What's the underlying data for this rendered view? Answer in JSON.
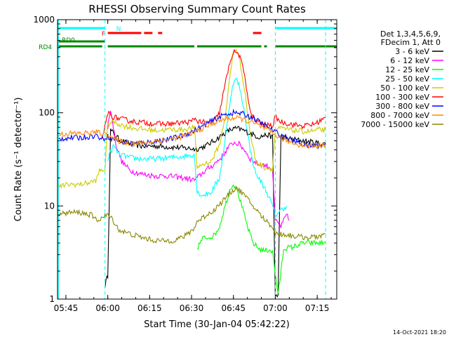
{
  "chart_data": {
    "type": "line",
    "title": "RHESSI Observing Summary Count Rates",
    "xlabel": "Start Time (30-Jan-04 05:42:22)",
    "ylabel": "Count Rate (s⁻¹ detector⁻¹)",
    "yscale": "log",
    "ylim": [
      1,
      1000
    ],
    "xlim_minutes": [
      0,
      100
    ],
    "x_ticks": [
      {
        "m": 3,
        "label": "05:45"
      },
      {
        "m": 18,
        "label": "06:00"
      },
      {
        "m": 33,
        "label": "06:15"
      },
      {
        "m": 48,
        "label": "06:30"
      },
      {
        "m": 63,
        "label": "06:45"
      },
      {
        "m": 78,
        "label": "07:00"
      },
      {
        "m": 93,
        "label": "07:15"
      }
    ],
    "y_ticks": [
      {
        "v": 1,
        "label": "1"
      },
      {
        "v": 10,
        "label": "10"
      },
      {
        "v": 100,
        "label": "100"
      },
      {
        "v": 1000,
        "label": "1000"
      }
    ],
    "legend": {
      "placement": "right",
      "header": [
        "Det 1,3,4,5,6,9,",
        "FDecim 1, Att 0"
      ]
    },
    "series": [
      {
        "name": "3 - 6 keV",
        "color": "#000000",
        "points": [
          [
            17,
            1.4
          ],
          [
            18,
            1.8
          ],
          [
            19,
            65
          ],
          [
            22,
            52
          ],
          [
            26,
            46
          ],
          [
            30,
            44
          ],
          [
            35,
            44
          ],
          [
            40,
            43
          ],
          [
            45,
            42
          ],
          [
            49,
            41
          ],
          [
            50,
            41
          ],
          [
            53,
            44
          ],
          [
            56,
            50
          ],
          [
            59,
            58
          ],
          [
            62,
            66
          ],
          [
            64,
            68
          ],
          [
            66,
            66
          ],
          [
            69,
            60
          ],
          [
            72,
            55
          ],
          [
            75,
            58
          ],
          [
            77,
            55
          ],
          [
            78,
            1.1
          ],
          [
            79,
            1.1
          ],
          [
            80,
            55
          ],
          [
            84,
            52
          ],
          [
            88,
            50
          ],
          [
            92,
            48
          ],
          [
            96,
            46
          ]
        ]
      },
      {
        "name": "6 - 12 keV",
        "color": "#ff00ff",
        "points": [
          [
            18,
            70
          ],
          [
            19,
            110
          ],
          [
            21,
            45
          ],
          [
            23,
            30
          ],
          [
            26,
            24
          ],
          [
            30,
            22
          ],
          [
            35,
            21
          ],
          [
            40,
            21
          ],
          [
            45,
            20
          ],
          [
            49,
            19
          ],
          [
            50,
            20
          ],
          [
            53,
            24
          ],
          [
            56,
            28
          ],
          [
            59,
            34
          ],
          [
            61,
            42
          ],
          [
            63,
            48
          ],
          [
            65,
            46
          ],
          [
            67,
            40
          ],
          [
            69,
            32
          ],
          [
            72,
            28
          ],
          [
            75,
            27
          ],
          [
            77,
            25
          ],
          [
            78,
            7
          ],
          [
            80,
            6
          ],
          [
            82,
            8
          ],
          [
            83,
            7
          ]
        ]
      },
      {
        "name": "12 - 25 keV",
        "color": "#00ff00",
        "points": [
          [
            50,
            3.5
          ],
          [
            52,
            4.5
          ],
          [
            54,
            4.6
          ],
          [
            56,
            4.8
          ],
          [
            58,
            6
          ],
          [
            60,
            10
          ],
          [
            62,
            16
          ],
          [
            63,
            17
          ],
          [
            64,
            16
          ],
          [
            66,
            10
          ],
          [
            68,
            6
          ],
          [
            70,
            4
          ],
          [
            72,
            3.5
          ],
          [
            74,
            3.3
          ],
          [
            76,
            3.4
          ],
          [
            77,
            3.2
          ],
          [
            79,
            1.1
          ],
          [
            81,
            3.5
          ],
          [
            84,
            3.6
          ],
          [
            88,
            4
          ],
          [
            92,
            4
          ],
          [
            96,
            4
          ]
        ]
      },
      {
        "name": "25 - 50 keV",
        "color": "#00ffff",
        "points": [
          [
            18,
            32
          ],
          [
            20,
            44
          ],
          [
            22,
            36
          ],
          [
            26,
            33
          ],
          [
            30,
            32
          ],
          [
            35,
            32
          ],
          [
            40,
            33
          ],
          [
            45,
            34
          ],
          [
            49,
            36
          ],
          [
            50,
            14
          ],
          [
            52,
            13
          ],
          [
            55,
            14
          ],
          [
            58,
            20
          ],
          [
            60,
            50
          ],
          [
            62,
            150
          ],
          [
            63,
            210
          ],
          [
            64,
            230
          ],
          [
            65,
            200
          ],
          [
            67,
            100
          ],
          [
            69,
            40
          ],
          [
            71,
            22
          ],
          [
            73,
            18
          ],
          [
            75,
            14
          ],
          [
            77,
            10
          ],
          [
            78,
            8
          ],
          [
            80,
            9
          ],
          [
            82,
            10
          ]
        ]
      },
      {
        "name": "50 - 100 keV",
        "color": "#cccc00",
        "points": [
          [
            0,
            16
          ],
          [
            4,
            17
          ],
          [
            8,
            17
          ],
          [
            12,
            18
          ],
          [
            14,
            19
          ],
          [
            15,
            24
          ],
          [
            16,
            24
          ],
          [
            17,
            25
          ],
          [
            18,
            76
          ],
          [
            20,
            80
          ],
          [
            24,
            72
          ],
          [
            28,
            68
          ],
          [
            32,
            66
          ],
          [
            36,
            65
          ],
          [
            40,
            66
          ],
          [
            44,
            66
          ],
          [
            48,
            68
          ],
          [
            49,
            70
          ],
          [
            50,
            26
          ],
          [
            52,
            28
          ],
          [
            55,
            30
          ],
          [
            58,
            45
          ],
          [
            60,
            90
          ],
          [
            62,
            280
          ],
          [
            63,
            460
          ],
          [
            64,
            480
          ],
          [
            65,
            400
          ],
          [
            67,
            180
          ],
          [
            69,
            60
          ],
          [
            71,
            30
          ],
          [
            74,
            26
          ],
          [
            77,
            25
          ],
          [
            78,
            66
          ],
          [
            80,
            68
          ],
          [
            84,
            65
          ],
          [
            88,
            63
          ],
          [
            92,
            64
          ],
          [
            94,
            66
          ],
          [
            96,
            65
          ]
        ]
      },
      {
        "name": "100 - 300 keV",
        "color": "#ff0000",
        "points": [
          [
            16,
            50
          ],
          [
            18,
            100
          ],
          [
            20,
            90
          ],
          [
            24,
            84
          ],
          [
            28,
            80
          ],
          [
            32,
            78
          ],
          [
            36,
            76
          ],
          [
            40,
            76
          ],
          [
            44,
            78
          ],
          [
            48,
            80
          ],
          [
            49,
            88
          ],
          [
            50,
            82
          ],
          [
            53,
            78
          ],
          [
            56,
            80
          ],
          [
            58,
            100
          ],
          [
            60,
            200
          ],
          [
            62,
            380
          ],
          [
            63,
            440
          ],
          [
            64,
            450
          ],
          [
            65,
            420
          ],
          [
            67,
            260
          ],
          [
            69,
            100
          ],
          [
            71,
            82
          ],
          [
            74,
            75
          ],
          [
            77,
            72
          ],
          [
            78,
            90
          ],
          [
            80,
            80
          ],
          [
            84,
            75
          ],
          [
            88,
            72
          ],
          [
            92,
            76
          ],
          [
            94,
            82
          ],
          [
            96,
            88
          ]
        ]
      },
      {
        "name": "300 - 800 keV",
        "color": "#0000ff",
        "points": [
          [
            0,
            52
          ],
          [
            4,
            54
          ],
          [
            8,
            54
          ],
          [
            12,
            56
          ],
          [
            14,
            57
          ],
          [
            16,
            52
          ],
          [
            18,
            56
          ],
          [
            20,
            52
          ],
          [
            24,
            48
          ],
          [
            28,
            47
          ],
          [
            32,
            48
          ],
          [
            36,
            50
          ],
          [
            40,
            52
          ],
          [
            44,
            56
          ],
          [
            48,
            62
          ],
          [
            52,
            72
          ],
          [
            56,
            84
          ],
          [
            60,
            96
          ],
          [
            63,
            100
          ],
          [
            66,
            98
          ],
          [
            70,
            88
          ],
          [
            74,
            74
          ],
          [
            78,
            62
          ],
          [
            82,
            54
          ],
          [
            86,
            48
          ],
          [
            90,
            44
          ],
          [
            94,
            45
          ],
          [
            96,
            46
          ]
        ]
      },
      {
        "name": "800 - 7000 keV",
        "color": "#ff8800",
        "points": [
          [
            0,
            58
          ],
          [
            4,
            60
          ],
          [
            8,
            60
          ],
          [
            12,
            61
          ],
          [
            14,
            62
          ],
          [
            16,
            60
          ],
          [
            18,
            60
          ],
          [
            20,
            52
          ],
          [
            24,
            48
          ],
          [
            28,
            47
          ],
          [
            32,
            48
          ],
          [
            36,
            50
          ],
          [
            40,
            52
          ],
          [
            44,
            55
          ],
          [
            48,
            60
          ],
          [
            52,
            68
          ],
          [
            56,
            78
          ],
          [
            60,
            86
          ],
          [
            63,
            88
          ],
          [
            66,
            86
          ],
          [
            70,
            78
          ],
          [
            74,
            68
          ],
          [
            78,
            58
          ],
          [
            82,
            50
          ],
          [
            86,
            46
          ],
          [
            90,
            44
          ],
          [
            94,
            44
          ],
          [
            96,
            46
          ]
        ]
      },
      {
        "name": "7000 - 15000 keV",
        "color": "#888800",
        "points": [
          [
            0,
            8
          ],
          [
            4,
            8.5
          ],
          [
            8,
            8.5
          ],
          [
            12,
            8
          ],
          [
            14,
            7
          ],
          [
            16,
            7.5
          ],
          [
            18,
            8
          ],
          [
            20,
            7
          ],
          [
            22,
            5.5
          ],
          [
            26,
            5
          ],
          [
            30,
            4.6
          ],
          [
            34,
            4.3
          ],
          [
            38,
            4.2
          ],
          [
            42,
            4.3
          ],
          [
            46,
            4.8
          ],
          [
            49,
            5.8
          ],
          [
            50,
            6.8
          ],
          [
            52,
            7.5
          ],
          [
            56,
            9
          ],
          [
            60,
            12
          ],
          [
            63,
            15
          ],
          [
            64,
            15.5
          ],
          [
            66,
            14
          ],
          [
            70,
            10
          ],
          [
            74,
            7.2
          ],
          [
            77,
            6
          ],
          [
            78,
            5
          ],
          [
            80,
            5
          ],
          [
            84,
            4.8
          ],
          [
            88,
            4.6
          ],
          [
            92,
            4.6
          ],
          [
            96,
            5
          ]
        ]
      }
    ],
    "flags": [
      {
        "label": "N",
        "color": "#00ffff",
        "segments": [
          [
            0,
            17
          ],
          [
            78,
            100
          ]
        ]
      },
      {
        "label": "F",
        "color": "#ff0000",
        "segments": [
          [
            18,
            30
          ],
          [
            31,
            34
          ],
          [
            36,
            37.5
          ],
          [
            70,
            73
          ]
        ]
      },
      {
        "label": "RD0",
        "color": "#008800",
        "segments": [
          [
            0,
            17
          ]
        ]
      },
      {
        "label": "RD4",
        "color": "#008800",
        "segments": [
          [
            0,
            16
          ],
          [
            18,
            49
          ],
          [
            50,
            73
          ],
          [
            74,
            75
          ],
          [
            78,
            100
          ]
        ]
      }
    ],
    "vlines": [
      {
        "m": 17,
        "color": "#00ffff",
        "style": "dashed"
      },
      {
        "m": 78,
        "color": "#00ffff",
        "style": "dashed"
      },
      {
        "m": 96,
        "color": "#00ffff",
        "style": "dashed"
      }
    ],
    "footer_timestamp": "14-Oct-2021 18:20"
  }
}
